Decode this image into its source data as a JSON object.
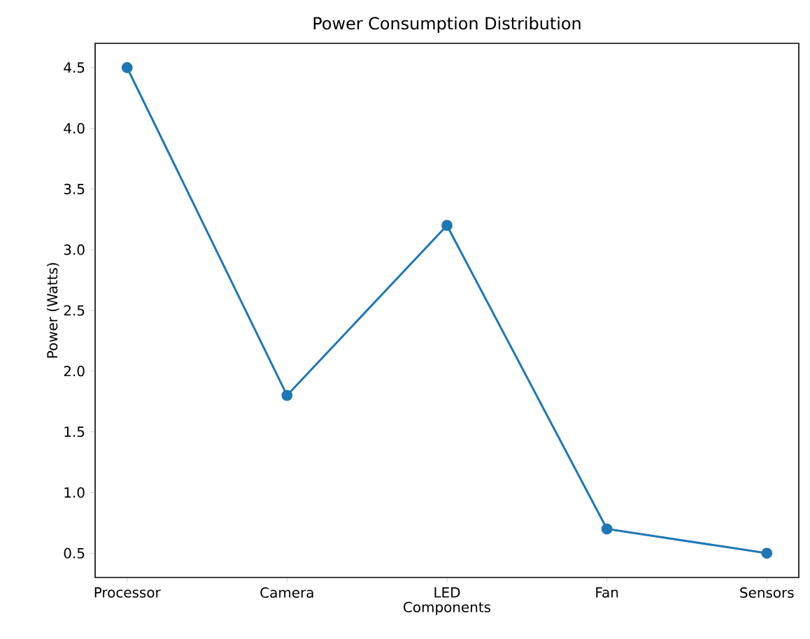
{
  "chart_data": {
    "type": "line",
    "title": "Power Consumption Distribution",
    "xlabel": "Components",
    "ylabel": "Power (Watts)",
    "categories": [
      "Processor",
      "Camera",
      "LED",
      "Fan",
      "Sensors"
    ],
    "series": [
      {
        "color": "#1f77b4",
        "values": [
          4.5,
          1.8,
          3.2,
          0.7,
          0.5
        ]
      }
    ],
    "ylim": [
      0.3,
      4.7
    ],
    "yticks": [
      0.5,
      {
        "value": 1,
        "label": "1.0"
      },
      1.5,
      {
        "value": 2,
        "label": "2.0"
      },
      2.5,
      {
        "value": 3,
        "label": "3.0"
      },
      3.5,
      {
        "value": 4,
        "label": "4.0"
      },
      4.5
    ],
    "marker": "circle",
    "line_style": "solid",
    "grid": false
  }
}
